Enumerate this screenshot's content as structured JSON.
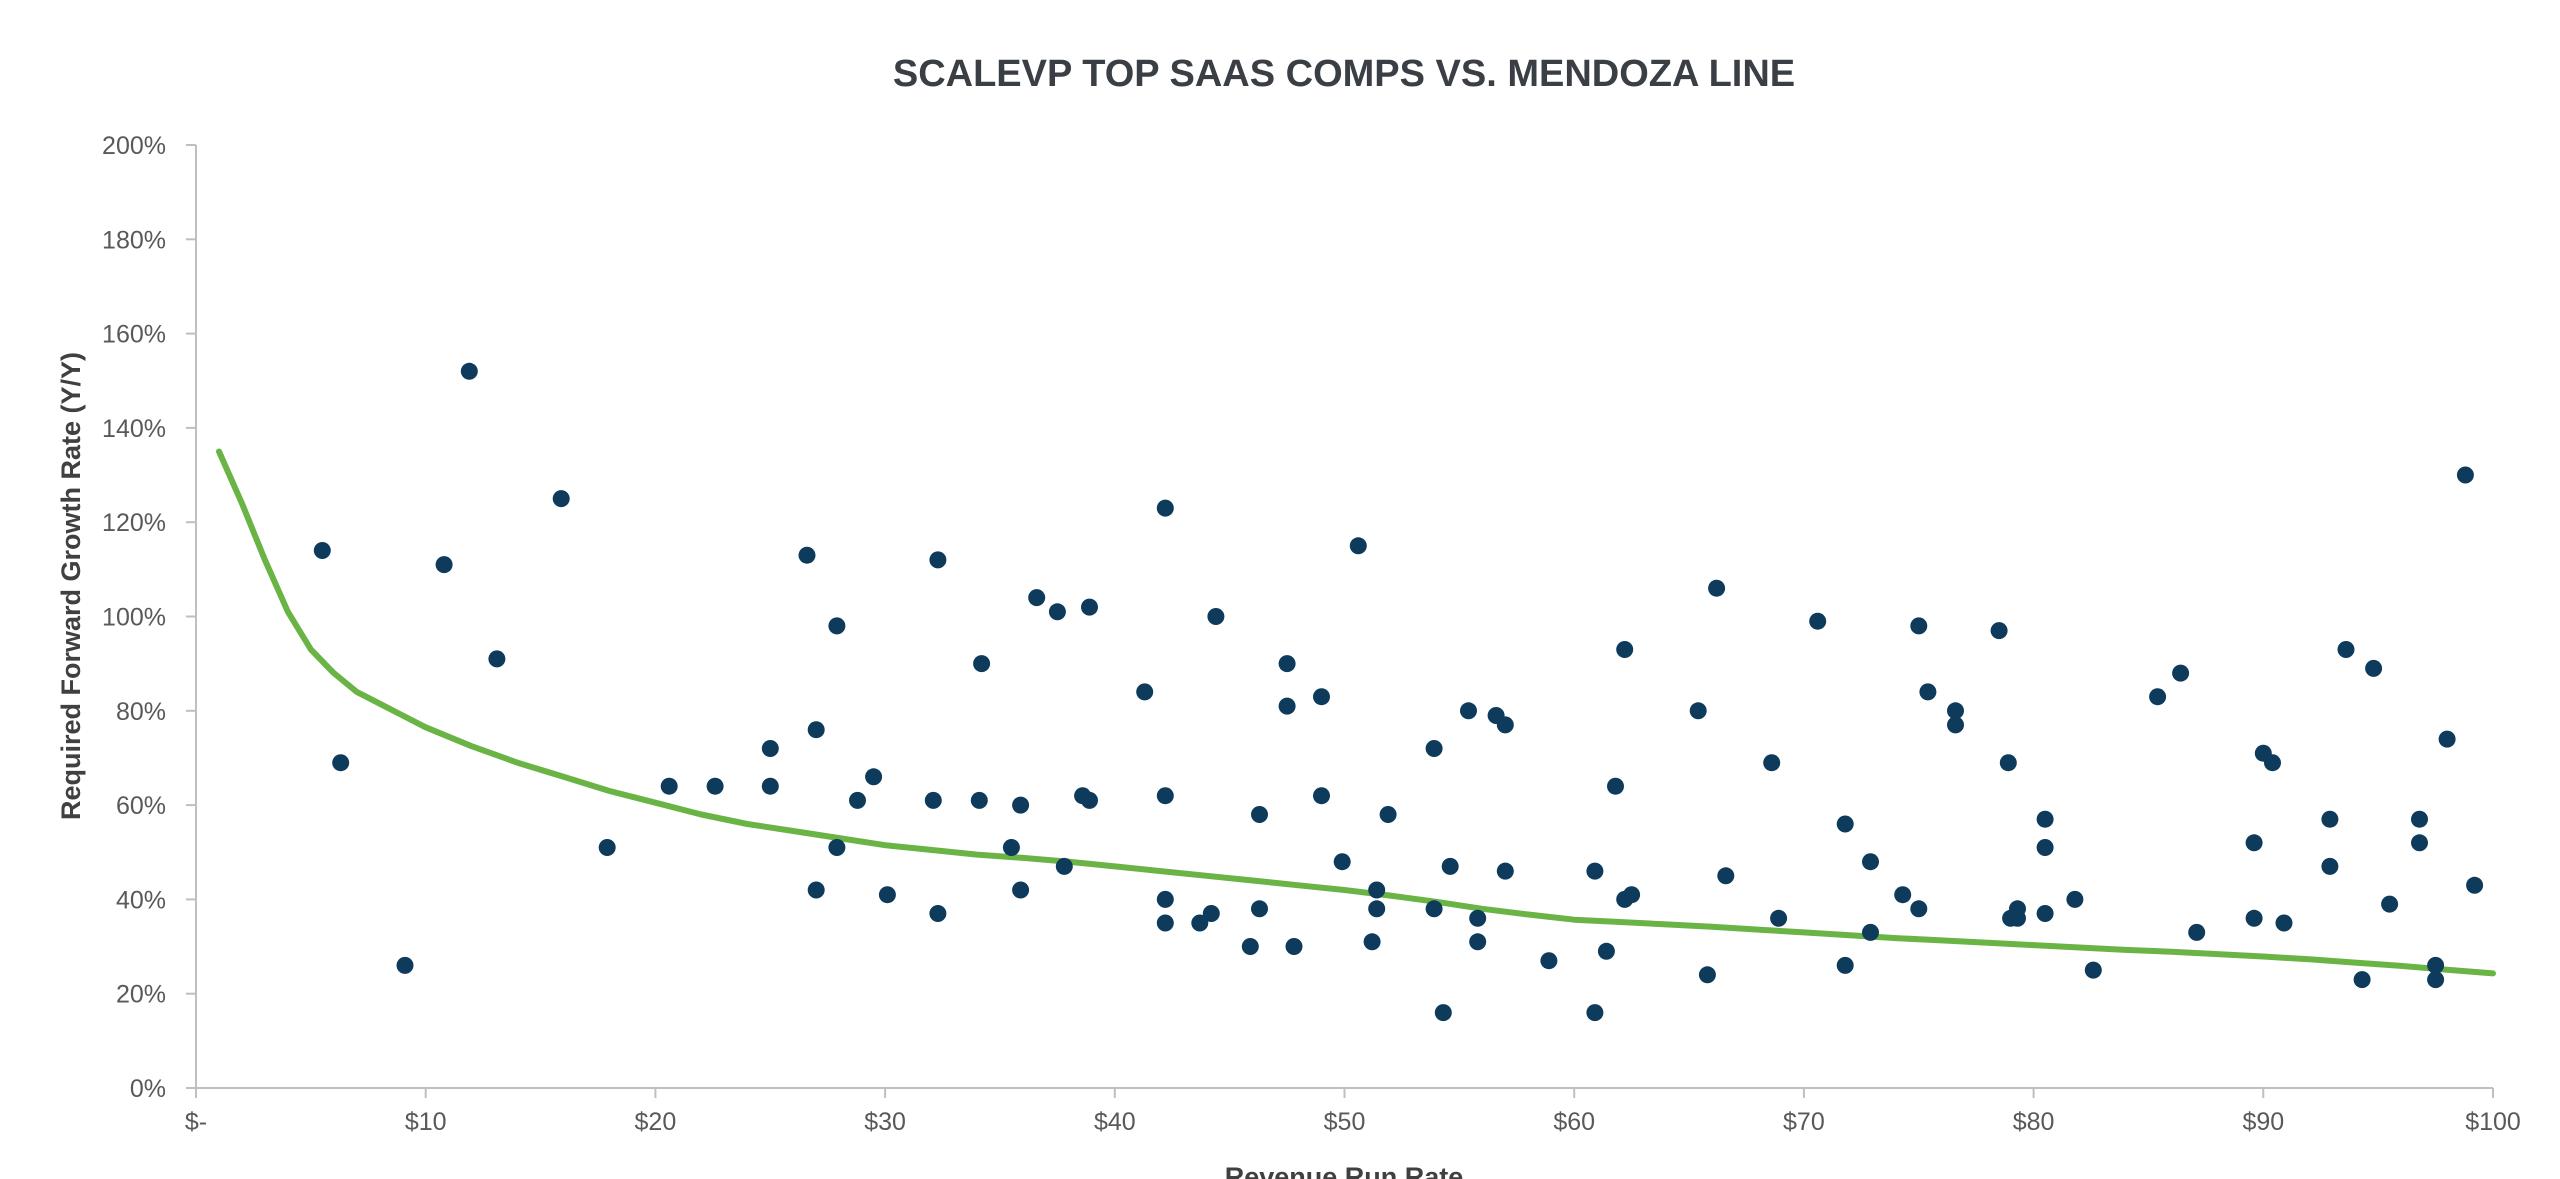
{
  "chart_data": {
    "type": "scatter",
    "title": "SCALEVP TOP SAAS COMPS VS. MENDOZA LINE",
    "xlabel": "Revenue Run Rate",
    "ylabel": "Required Forward Growth Rate (Y/Y)",
    "xlim": [
      0,
      100
    ],
    "ylim": [
      0,
      200
    ],
    "x_ticks": [
      0,
      10,
      20,
      30,
      40,
      50,
      60,
      70,
      80,
      90,
      100
    ],
    "x_tick_labels": [
      "$-",
      "$10",
      "$20",
      "$30",
      "$40",
      "$50",
      "$60",
      "$70",
      "$80",
      "$90",
      "$100"
    ],
    "y_ticks": [
      0,
      20,
      40,
      60,
      80,
      100,
      120,
      140,
      160,
      180,
      200
    ],
    "y_tick_labels": [
      "0%",
      "20%",
      "40%",
      "60%",
      "80%",
      "100%",
      "120%",
      "140%",
      "160%",
      "180%",
      "200%"
    ],
    "grid": false,
    "legend": "none",
    "colors": {
      "points": "#0e3a5c",
      "line": "#6ab446",
      "axis": "#bfbfbf",
      "title": "#3a3f45"
    },
    "series": [
      {
        "kind": "scatter",
        "points": [
          [
            5.5,
            114
          ],
          [
            6.3,
            69
          ],
          [
            9.1,
            26
          ],
          [
            10.8,
            111
          ],
          [
            11.9,
            152
          ],
          [
            13.1,
            91
          ],
          [
            15.9,
            125
          ],
          [
            17.9,
            51
          ],
          [
            20.6,
            64
          ],
          [
            22.6,
            64
          ],
          [
            25.0,
            72
          ],
          [
            25.0,
            64
          ],
          [
            26.6,
            113
          ],
          [
            27.0,
            76
          ],
          [
            27.0,
            42
          ],
          [
            27.9,
            98
          ],
          [
            27.9,
            51
          ],
          [
            28.8,
            61
          ],
          [
            29.5,
            66
          ],
          [
            30.1,
            41
          ],
          [
            32.1,
            61
          ],
          [
            32.3,
            112
          ],
          [
            32.3,
            37
          ],
          [
            34.2,
            90
          ],
          [
            34.1,
            61
          ],
          [
            35.5,
            51
          ],
          [
            35.9,
            60
          ],
          [
            35.9,
            42
          ],
          [
            36.6,
            104
          ],
          [
            37.5,
            101
          ],
          [
            37.8,
            47
          ],
          [
            38.6,
            62
          ],
          [
            38.9,
            102
          ],
          [
            38.9,
            61
          ],
          [
            41.3,
            84
          ],
          [
            42.2,
            123
          ],
          [
            42.2,
            62
          ],
          [
            42.2,
            40
          ],
          [
            42.2,
            35
          ],
          [
            43.7,
            35
          ],
          [
            44.2,
            37
          ],
          [
            44.4,
            100
          ],
          [
            45.9,
            30
          ],
          [
            46.3,
            58
          ],
          [
            46.3,
            38
          ],
          [
            47.5,
            90
          ],
          [
            47.5,
            81
          ],
          [
            47.8,
            30
          ],
          [
            49.0,
            62
          ],
          [
            49.0,
            83
          ],
          [
            49.9,
            48
          ],
          [
            50.6,
            115
          ],
          [
            51.2,
            31
          ],
          [
            51.4,
            42
          ],
          [
            51.4,
            38
          ],
          [
            51.9,
            58
          ],
          [
            53.9,
            72
          ],
          [
            53.9,
            38
          ],
          [
            54.3,
            16
          ],
          [
            54.6,
            47
          ],
          [
            55.4,
            80
          ],
          [
            55.8,
            36
          ],
          [
            55.8,
            31
          ],
          [
            56.6,
            79
          ],
          [
            57.0,
            77
          ],
          [
            57.0,
            46
          ],
          [
            58.9,
            27
          ],
          [
            60.9,
            16
          ],
          [
            60.9,
            46
          ],
          [
            61.4,
            29
          ],
          [
            61.8,
            64
          ],
          [
            62.2,
            93
          ],
          [
            62.2,
            40
          ],
          [
            62.5,
            41
          ],
          [
            65.4,
            80
          ],
          [
            65.8,
            24
          ],
          [
            66.2,
            106
          ],
          [
            66.6,
            45
          ],
          [
            68.6,
            69
          ],
          [
            68.9,
            36
          ],
          [
            70.6,
            99
          ],
          [
            71.8,
            56
          ],
          [
            71.8,
            26
          ],
          [
            72.9,
            48
          ],
          [
            72.9,
            33
          ],
          [
            74.3,
            41
          ],
          [
            75.0,
            98
          ],
          [
            75.0,
            38
          ],
          [
            75.4,
            84
          ],
          [
            76.6,
            80
          ],
          [
            76.6,
            77
          ],
          [
            78.5,
            97
          ],
          [
            78.9,
            69
          ],
          [
            79.0,
            36
          ],
          [
            79.3,
            38
          ],
          [
            79.3,
            36
          ],
          [
            80.5,
            57
          ],
          [
            80.5,
            51
          ],
          [
            80.5,
            37
          ],
          [
            81.8,
            40
          ],
          [
            82.6,
            25
          ],
          [
            85.4,
            83
          ],
          [
            86.4,
            88
          ],
          [
            87.1,
            33
          ],
          [
            89.6,
            52
          ],
          [
            89.6,
            36
          ],
          [
            90.0,
            71
          ],
          [
            90.4,
            69
          ],
          [
            90.9,
            35
          ],
          [
            92.9,
            57
          ],
          [
            92.9,
            47
          ],
          [
            93.6,
            93
          ],
          [
            94.3,
            23
          ],
          [
            94.8,
            89
          ],
          [
            95.5,
            39
          ],
          [
            96.8,
            57
          ],
          [
            96.8,
            52
          ],
          [
            97.5,
            26
          ],
          [
            97.5,
            23
          ],
          [
            98.0,
            74
          ],
          [
            98.8,
            130
          ],
          [
            99.2,
            43
          ]
        ]
      },
      {
        "kind": "line",
        "points": [
          [
            1,
            135
          ],
          [
            2,
            124
          ],
          [
            3,
            112
          ],
          [
            4,
            101
          ],
          [
            5,
            93
          ],
          [
            6,
            88
          ],
          [
            7,
            84
          ],
          [
            8,
            81.5
          ],
          [
            9,
            79
          ],
          [
            10,
            76.5
          ],
          [
            12,
            72.5
          ],
          [
            14,
            69
          ],
          [
            16,
            66
          ],
          [
            18,
            63
          ],
          [
            20,
            60.5
          ],
          [
            22,
            58
          ],
          [
            24,
            56
          ],
          [
            26,
            54.5
          ],
          [
            28,
            53
          ],
          [
            30,
            51.5
          ],
          [
            32,
            50.5
          ],
          [
            34,
            49.5
          ],
          [
            36,
            48.8
          ],
          [
            38,
            48
          ],
          [
            40,
            47
          ],
          [
            42,
            46
          ],
          [
            44,
            45
          ],
          [
            46,
            44
          ],
          [
            48,
            43
          ],
          [
            50,
            42
          ],
          [
            52,
            40.8
          ],
          [
            54,
            39.5
          ],
          [
            56,
            38
          ],
          [
            58,
            36.8
          ],
          [
            60,
            35.7
          ],
          [
            62,
            35.2
          ],
          [
            64,
            34.7
          ],
          [
            66,
            34.2
          ],
          [
            68,
            33.6
          ],
          [
            70,
            33
          ],
          [
            72,
            32.4
          ],
          [
            74,
            31.8
          ],
          [
            76,
            31.3
          ],
          [
            78,
            30.8
          ],
          [
            80,
            30.3
          ],
          [
            82,
            29.8
          ],
          [
            84,
            29.3
          ],
          [
            86,
            28.9
          ],
          [
            88,
            28.4
          ],
          [
            90,
            27.9
          ],
          [
            92,
            27.3
          ],
          [
            94,
            26.6
          ],
          [
            96,
            25.9
          ],
          [
            98,
            25.1
          ],
          [
            100,
            24.3
          ]
        ]
      }
    ]
  }
}
